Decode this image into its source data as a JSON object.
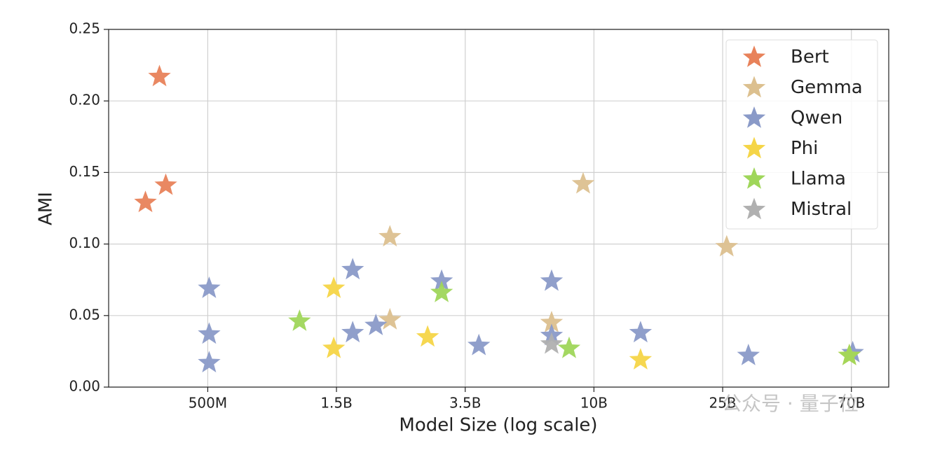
{
  "chart_data": {
    "type": "scatter",
    "xlabel": "Model Size (log scale)",
    "ylabel": "AMI",
    "xlim": [
      -0.77,
      5.29
    ],
    "ylim": [
      0,
      0.25
    ],
    "xticks": [
      {
        "value": 0,
        "label": "500M"
      },
      {
        "value": 1,
        "label": "1.5B"
      },
      {
        "value": 2,
        "label": "3.5B"
      },
      {
        "value": 3,
        "label": "10B"
      },
      {
        "value": 4,
        "label": "25B"
      },
      {
        "value": 5,
        "label": "70B"
      }
    ],
    "yticks": [
      {
        "value": 0,
        "label": "0.00"
      },
      0.05,
      {
        "value": 0.1,
        "label": "0.10"
      },
      0.15,
      {
        "value": 0.2,
        "label": "0.20"
      },
      0.25
    ],
    "grid": true,
    "legend": "upper right",
    "watermark": "公众号 · 量子位",
    "series": [
      {
        "name": "Bert",
        "color": "#e8825a",
        "x": [
          -0.375,
          -0.484,
          -0.326
        ],
        "values": [
          0.217,
          0.129,
          0.141
        ]
      },
      {
        "name": "Gemma",
        "color": "#dcc08f",
        "x": [
          1.415,
          1.415,
          2.916,
          2.671,
          4.031
        ],
        "values": [
          0.105,
          0.047,
          0.142,
          0.045,
          0.098
        ]
      },
      {
        "name": "Qwen",
        "color": "#8a9ac8",
        "x": [
          0.011,
          0.011,
          0.011,
          1.126,
          1.126,
          1.306,
          1.817,
          2.106,
          2.671,
          2.671,
          3.362,
          4.2,
          5.01
        ],
        "values": [
          0.069,
          0.037,
          0.017,
          0.082,
          0.038,
          0.043,
          0.074,
          0.029,
          0.074,
          0.036,
          0.038,
          0.022,
          0.024
        ]
      },
      {
        "name": "Phi",
        "color": "#f5d547",
        "x": [
          0.979,
          0.979,
          1.708,
          3.362,
          4.984
        ],
        "values": [
          0.069,
          0.027,
          0.035,
          0.019,
          0.022
        ]
      },
      {
        "name": "Llama",
        "color": "#9fd65a",
        "x": [
          0.713,
          1.817,
          2.807,
          4.984
        ],
        "values": [
          0.046,
          0.066,
          0.027,
          0.022
        ]
      },
      {
        "name": "Mistral",
        "color": "#b0b0b0",
        "x": [
          2.671
        ],
        "values": [
          0.03
        ]
      }
    ]
  }
}
